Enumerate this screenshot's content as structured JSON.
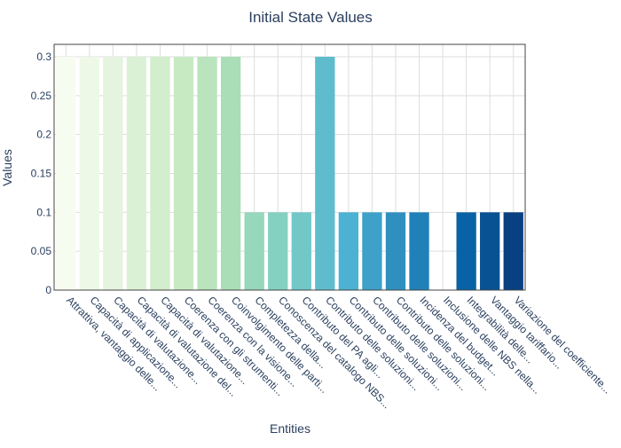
{
  "chart_data": {
    "type": "bar",
    "title": "Initial State Values",
    "xlabel": "Entities",
    "ylabel": "Values",
    "ylim": [
      0,
      0.316
    ],
    "yticks": [
      0,
      0.05,
      0.1,
      0.15,
      0.2,
      0.25,
      0.3
    ],
    "ytick_labels": [
      "0",
      "0.05",
      "0.1",
      "0.15",
      "0.2",
      "0.25",
      "0.3"
    ],
    "grid": true,
    "colorscale": "GnBu",
    "colors": [
      "#f7fcf0",
      "#084081"
    ],
    "categories": [
      "Attrattiva, vantaggio delle...",
      "Capacità di applicazione...",
      "Capacità di valutazione...",
      "Capacità di valutazione del...",
      "Capacità di valutazione...",
      "Coerenza con gli strumenti...",
      "Coerenza con la visione...",
      "Coinvolgimento delle parti...",
      "Completezza della...",
      "Conoscenza del catalogo NBS...",
      "Contributo del PA agli...",
      "Contributo delle soluzioni...",
      "Contributo delle soluzioni...",
      "Contributo delle soluzioni...",
      "Contributo delle soluzioni...",
      "Incidenza del budget...",
      "Inclusione delle NBS nella...",
      "Integrabilità delle...",
      "Vantaggio tariffario...",
      "Variazione del coefficiente..."
    ],
    "values": [
      0.3,
      0.3,
      0.3,
      0.3,
      0.3,
      0.3,
      0.3,
      0.3,
      0.1,
      0.1,
      0.1,
      0.3,
      0.1,
      0.1,
      0.1,
      0.1,
      0,
      0.1,
      0.1,
      0.1
    ]
  }
}
